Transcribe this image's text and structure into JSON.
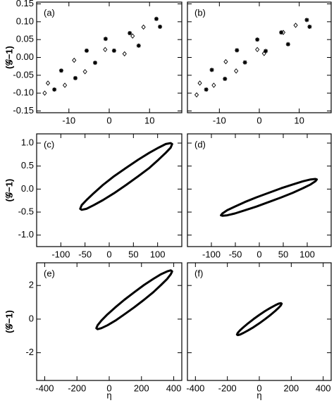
{
  "chart_data": [
    {
      "type": "scatter",
      "label": "(a)",
      "ylabel": "(𝒢−1)",
      "xlim": [
        -18,
        18
      ],
      "xticks": [
        -10,
        0,
        10
      ],
      "ylim": [
        -0.155,
        0.155
      ],
      "yticks": [
        -0.15,
        {
          "value": -0.1,
          "label": "-0.10"
        },
        -0.05,
        {
          "value": 0,
          "label": "0.00"
        },
        0.05,
        {
          "value": 0.1,
          "label": "0.10"
        },
        0.15
      ],
      "series": [
        {
          "marker": "diamond",
          "color": "#000000",
          "x": [
            -16,
            -15.2,
            -11,
            -8.7,
            -6,
            -1,
            3.8,
            5.8,
            8.5
          ],
          "values": [
            -0.1,
            -0.072,
            -0.078,
            -0.008,
            -0.04,
            0.022,
            0.01,
            0.06,
            0.085
          ]
        },
        {
          "marker": "star",
          "color": "#000000",
          "x": [
            -13.6,
            -11.9,
            -8.4,
            -5.6,
            -3.5,
            -0.9,
            1.2,
            5.1,
            7.3,
            11.7,
            12.6
          ],
          "values": [
            -0.09,
            -0.037,
            -0.058,
            0.019,
            -0.015,
            0.052,
            0.019,
            0.068,
            0.033,
            0.108,
            0.086
          ]
        }
      ]
    },
    {
      "type": "scatter",
      "label": "(b)",
      "xlim": [
        -18,
        18
      ],
      "xticks": [
        -10,
        0,
        10
      ],
      "ylim": [
        -0.155,
        0.155
      ],
      "yticks": [
        -0.15,
        -0.1,
        -0.05,
        0,
        0.05,
        0.1,
        0.15
      ],
      "ytick_labels": false,
      "series": [
        {
          "marker": "diamond",
          "color": "#000000",
          "x": [
            -15.7,
            -14.9,
            -11.4,
            -8.4,
            -5.8,
            -0.5,
            1.2,
            6,
            9.1
          ],
          "values": [
            -0.105,
            -0.072,
            -0.078,
            -0.012,
            -0.038,
            0.022,
            0.011,
            0.07,
            0.09
          ]
        },
        {
          "marker": "star",
          "color": "#000000",
          "x": [
            -13.3,
            -11.9,
            -8.6,
            -5.6,
            -3.6,
            -0.5,
            1.6,
            5.5,
            7.2,
            11.9,
            12.6
          ],
          "values": [
            -0.09,
            -0.035,
            -0.06,
            0.02,
            -0.014,
            0.05,
            0.018,
            0.07,
            0.037,
            0.105,
            0.086
          ]
        }
      ]
    },
    {
      "type": "loop",
      "label": "(c)",
      "ylabel": "(𝒢−1)",
      "xlim": [
        -150,
        150
      ],
      "xticks": [
        -100,
        -50,
        0,
        50,
        100
      ],
      "ylim": [
        -1.25,
        1.2
      ],
      "yticks": [
        {
          "value": -1,
          "label": "-1.0"
        },
        -0.5,
        {
          "value": 0,
          "label": "0.0"
        },
        0.5,
        {
          "value": 1,
          "label": "1.0"
        }
      ],
      "series": [
        {
          "color": "#000000",
          "x": [
            130,
            127,
            117,
            102,
            83,
            60,
            35,
            10,
            -13,
            -32,
            -47,
            -57,
            -60,
            -57,
            -47,
            -32,
            -13,
            10,
            35,
            60,
            83,
            102,
            117,
            127
          ],
          "values": [
            0.98,
            1.0,
            0.98,
            0.9,
            0.79,
            0.64,
            0.46,
            0.28,
            0.09,
            -0.09,
            -0.24,
            -0.35,
            -0.43,
            -0.45,
            -0.43,
            -0.35,
            -0.24,
            -0.09,
            0.09,
            0.28,
            0.46,
            0.64,
            0.79,
            0.9
          ]
        }
      ]
    },
    {
      "type": "loop",
      "label": "(d)",
      "xlim": [
        -150,
        150
      ],
      "xticks": [
        -100,
        -50,
        0,
        50,
        100
      ],
      "ylim": [
        -1.25,
        1.2
      ],
      "yticks": [
        -1,
        -0.5,
        0,
        0.5,
        1
      ],
      "ytick_labels": false,
      "series": [
        {
          "color": "#000000",
          "x": [
            120,
            117,
            107,
            91,
            70,
            46,
            20,
            -6,
            -30,
            -51,
            -67,
            -77,
            -80,
            -77,
            -67,
            -51,
            -30,
            -6,
            20,
            46,
            70,
            91,
            107,
            117
          ],
          "values": [
            0.21,
            0.22,
            0.21,
            0.17,
            0.1,
            0.02,
            -0.08,
            -0.18,
            -0.28,
            -0.38,
            -0.46,
            -0.53,
            -0.57,
            -0.58,
            -0.57,
            -0.53,
            -0.46,
            -0.38,
            -0.28,
            -0.18,
            -0.08,
            0.02,
            0.1,
            0.17
          ]
        }
      ]
    },
    {
      "type": "loop",
      "label": "(e)",
      "ylabel": "(𝒢−1)",
      "xlabel": "η",
      "xlim": [
        -450,
        450
      ],
      "xticks": [
        -400,
        -200,
        0,
        200,
        400
      ],
      "ylim": [
        -3.65,
        3.35
      ],
      "yticks": [
        -2,
        0,
        2
      ],
      "series": [
        {
          "color": "#000000",
          "x": [
            390,
            382,
            359,
            321,
            273,
            216,
            155,
            94,
            38,
            -11,
            -49,
            -72,
            -80,
            -72,
            -49,
            -11,
            38,
            94,
            155,
            216,
            273,
            321,
            359,
            382
          ],
          "values": [
            2.84,
            2.9,
            2.84,
            2.67,
            2.39,
            2.03,
            1.6,
            1.15,
            0.7,
            0.28,
            -0.09,
            -0.37,
            -0.54,
            -0.6,
            -0.54,
            -0.37,
            -0.09,
            0.28,
            0.7,
            1.15,
            1.6,
            2.03,
            2.39,
            2.67
          ]
        }
      ]
    },
    {
      "type": "loop",
      "label": "(f)",
      "xlabel": "η",
      "xlim": [
        -450,
        450
      ],
      "xticks": [
        -400,
        -200,
        0,
        200,
        400
      ],
      "ylim": [
        -3.65,
        3.35
      ],
      "yticks": [
        -2,
        0,
        2
      ],
      "ytick_labels": false,
      "series": [
        {
          "color": "#000000",
          "x": [
            140,
            135,
            121,
            99,
            70,
            36,
            0,
            -36,
            -70,
            -99,
            -121,
            -135,
            -140,
            -135,
            -121,
            -99,
            -70,
            -36,
            0,
            36,
            70,
            99,
            121,
            135
          ],
          "values": [
            0.92,
            0.95,
            0.92,
            0.82,
            0.67,
            0.48,
            0.25,
            0,
            -0.25,
            -0.48,
            -0.67,
            -0.82,
            -0.92,
            -0.95,
            -0.92,
            -0.82,
            -0.67,
            -0.48,
            -0.25,
            0,
            0.25,
            0.48,
            0.67,
            0.82
          ]
        }
      ]
    }
  ]
}
